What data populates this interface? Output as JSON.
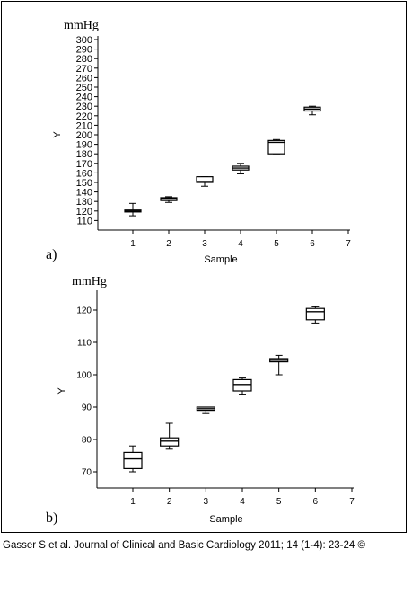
{
  "chart_data": [
    {
      "type": "box",
      "panel_label": "a)",
      "unit_label": "mmHg",
      "ylabel": "Y",
      "xlabel": "Sample",
      "xlim": [
        0,
        7
      ],
      "ylim": [
        100,
        300
      ],
      "x_ticks": [
        1,
        2,
        3,
        4,
        5,
        6,
        7
      ],
      "y_ticks": [
        110,
        120,
        130,
        140,
        150,
        160,
        170,
        180,
        190,
        200,
        210,
        220,
        230,
        240,
        250,
        260,
        270,
        280,
        290,
        300
      ],
      "boxes": [
        {
          "x": 1,
          "min": 115,
          "q1": 119,
          "median": 120,
          "q3": 121,
          "max": 128
        },
        {
          "x": 2,
          "min": 129,
          "q1": 131,
          "median": 133,
          "q3": 134,
          "max": 135
        },
        {
          "x": 3,
          "min": 146,
          "q1": 150,
          "median": 151,
          "q3": 156,
          "max": 156
        },
        {
          "x": 4,
          "min": 159,
          "q1": 163,
          "median": 165,
          "q3": 167,
          "max": 170
        },
        {
          "x": 5,
          "min": 180,
          "q1": 180,
          "median": 192,
          "q3": 194,
          "max": 195
        },
        {
          "x": 6,
          "min": 221,
          "q1": 225,
          "median": 227,
          "q3": 229,
          "max": 230
        }
      ]
    },
    {
      "type": "box",
      "panel_label": "b)",
      "unit_label": "mmHg",
      "ylabel": "Y",
      "xlabel": "Sample",
      "xlim": [
        0,
        7
      ],
      "ylim": [
        65,
        125
      ],
      "x_ticks": [
        1,
        2,
        3,
        4,
        5,
        6,
        7
      ],
      "y_ticks": [
        70,
        80,
        90,
        100,
        110,
        120
      ],
      "boxes": [
        {
          "x": 1,
          "min": 70,
          "q1": 71,
          "median": 74,
          "q3": 76,
          "max": 78
        },
        {
          "x": 2,
          "min": 77,
          "q1": 78,
          "median": 79.5,
          "q3": 80.5,
          "max": 85
        },
        {
          "x": 3,
          "min": 88,
          "q1": 89,
          "median": 89.5,
          "q3": 90,
          "max": 90
        },
        {
          "x": 4,
          "min": 94,
          "q1": 95,
          "median": 97,
          "q3": 98.5,
          "max": 99
        },
        {
          "x": 5,
          "min": 100,
          "q1": 104,
          "median": 104.5,
          "q3": 105,
          "max": 106
        },
        {
          "x": 6,
          "min": 116,
          "q1": 117,
          "median": 119.5,
          "q3": 120.5,
          "max": 121
        }
      ]
    }
  ],
  "citation": "Gasser S et al. Journal of Clinical and Basic Cardiology 2011; 14 (1-4): 23-24 ©"
}
